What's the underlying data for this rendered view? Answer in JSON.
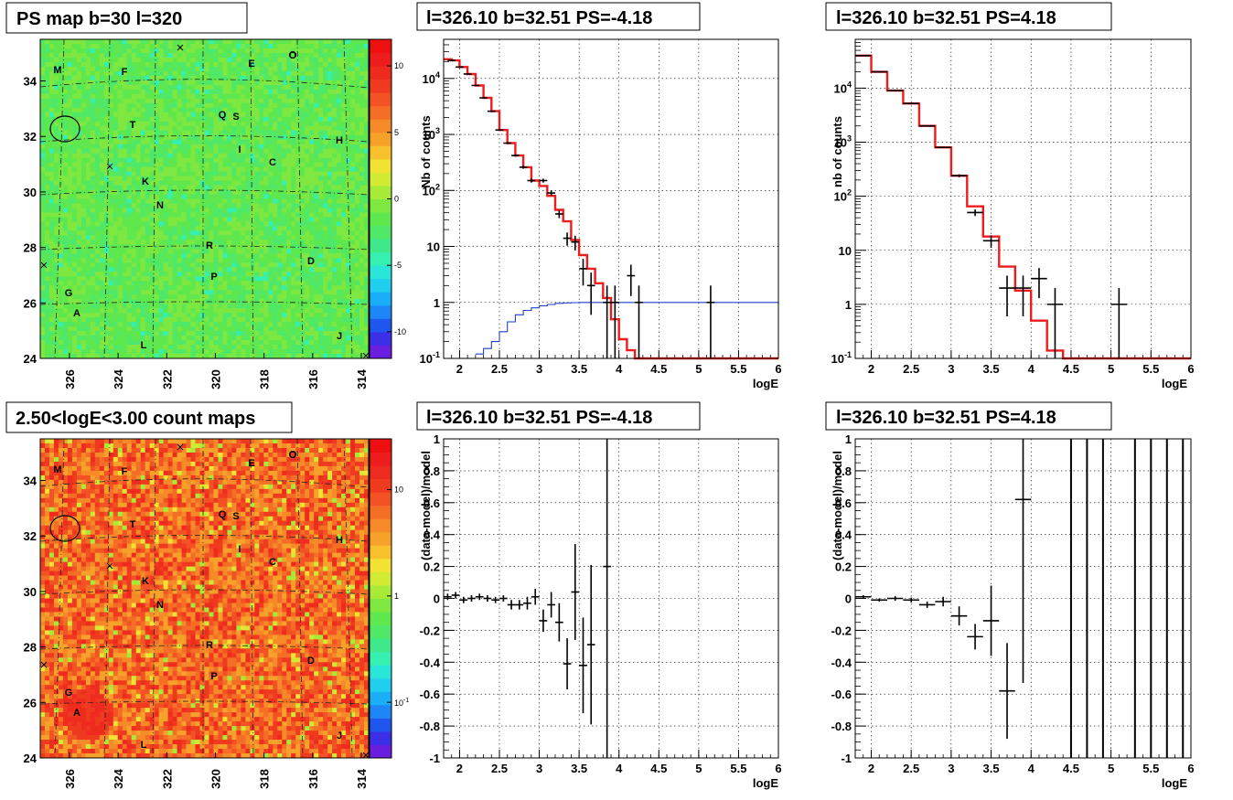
{
  "chart_data": [
    {
      "type": "heatmap",
      "title": "PS map b=30 l=320",
      "xlabel": "",
      "ylabel": "",
      "xticks": [
        "326",
        "324",
        "322",
        "320",
        "318",
        "316",
        "314"
      ],
      "yticks": [
        "24",
        "26",
        "28",
        "30",
        "32",
        "34"
      ],
      "xlim": [
        327.2,
        313.7
      ],
      "ylim": [
        24,
        35.5
      ],
      "colorbar": {
        "ticks": [
          "10",
          "5",
          "0",
          "-5",
          "-10"
        ],
        "tick_values": [
          10,
          5,
          0,
          -5,
          -10
        ],
        "range": [
          -12,
          12
        ],
        "colors": [
          "#6a1ee0",
          "#3b2fe8",
          "#1f56f0",
          "#1f86f7",
          "#19aef7",
          "#20cef0",
          "#2ae6d8",
          "#35f0b0",
          "#3fe88a",
          "#4fe868",
          "#5ee84e",
          "#7ee840",
          "#a8ea38",
          "#d2ea34",
          "#f2e234",
          "#f6c12d",
          "#f6a22a",
          "#f68a28",
          "#f46e26",
          "#f25224",
          "#f03a20",
          "#ef2a1e",
          "#ee1c1c",
          "#ee1010"
        ]
      },
      "background_color": "#3fe65a",
      "labels": [
        "M",
        "F",
        "E",
        "O",
        "T",
        "Q",
        "S",
        "H",
        "I",
        "C",
        "K",
        "N",
        "R",
        "D",
        "P",
        "G",
        "A",
        "L",
        "J"
      ]
    },
    {
      "type": "line",
      "title": "l=326.10 b=32.51 PS=-4.18",
      "xlabel": "logE",
      "ylabel": "Nb of counts",
      "log_y": true,
      "xlim": [
        1.8,
        6
      ],
      "ylim": [
        0.1,
        50000
      ],
      "xticks": [
        "2",
        "2.5",
        "3",
        "3.5",
        "4",
        "4.5",
        "5",
        "5.5",
        "6"
      ],
      "yticks": [
        "10^-1",
        "1",
        "10",
        "10^2",
        "10^3",
        "10^4"
      ],
      "series": [
        {
          "color": "#ee1c1c",
          "bin_edges": [
            1.8,
            1.9,
            2.0,
            2.1,
            2.2,
            2.3,
            2.4,
            2.5,
            2.6,
            2.7,
            2.8,
            2.9,
            3.0,
            3.1,
            3.2,
            3.3,
            3.4,
            3.5,
            3.6,
            3.7,
            3.8,
            3.9,
            4.0,
            4.1,
            4.2,
            4.3,
            6.0
          ],
          "values": [
            22000,
            21000,
            16000,
            12000,
            7500,
            4500,
            2600,
            1200,
            700,
            420,
            260,
            150,
            120,
            80,
            45,
            28,
            13,
            7,
            4,
            2.2,
            1.2,
            0.5,
            0.22,
            0.14,
            0.1,
            0.1
          ]
        },
        {
          "color": "#1f3fc8",
          "bin_edges": [
            2.2,
            2.3,
            2.4,
            2.5,
            2.6,
            2.7,
            2.8,
            2.9,
            3.0,
            3.1,
            3.2,
            3.3,
            3.4,
            3.5,
            6.0
          ],
          "values": [
            0.12,
            0.15,
            0.2,
            0.3,
            0.45,
            0.6,
            0.72,
            0.8,
            0.87,
            0.92,
            0.96,
            0.98,
            0.99,
            1.0
          ]
        }
      ],
      "points": [
        {
          "x": 1.9,
          "y": 21000,
          "err": 145,
          "xerr": 0.05
        },
        {
          "x": 2.0,
          "y": 16000,
          "err": 127,
          "xerr": 0.05
        },
        {
          "x": 2.1,
          "y": 12000,
          "err": 110,
          "xerr": 0.05
        },
        {
          "x": 2.2,
          "y": 7500,
          "err": 87,
          "xerr": 0.05
        },
        {
          "x": 2.3,
          "y": 4500,
          "err": 67,
          "xerr": 0.05
        },
        {
          "x": 2.4,
          "y": 2600,
          "err": 51,
          "xerr": 0.05
        },
        {
          "x": 2.5,
          "y": 1200,
          "err": 35,
          "xerr": 0.05
        },
        {
          "x": 2.6,
          "y": 700,
          "err": 26,
          "xerr": 0.05
        },
        {
          "x": 2.7,
          "y": 420,
          "err": 20,
          "xerr": 0.05
        },
        {
          "x": 2.8,
          "y": 260,
          "err": 16,
          "xerr": 0.05
        },
        {
          "x": 2.9,
          "y": 150,
          "err": 12,
          "xerr": 0.05
        },
        {
          "x": 3.05,
          "y": 150,
          "err": 12,
          "xerr": 0.05
        },
        {
          "x": 3.15,
          "y": 90,
          "err": 9,
          "xerr": 0.05
        },
        {
          "x": 3.25,
          "y": 38,
          "err": 6,
          "xerr": 0.05
        },
        {
          "x": 3.35,
          "y": 14,
          "err": 3.7,
          "xerr": 0.05
        },
        {
          "x": 3.45,
          "y": 12,
          "err": 3.5,
          "xerr": 0.05
        },
        {
          "x": 3.55,
          "y": 4,
          "err": 2,
          "xerr": 0.05
        },
        {
          "x": 3.65,
          "y": 2,
          "err": 1.4,
          "xerr": 0.05
        },
        {
          "x": 3.85,
          "y": 1,
          "err": 1,
          "xerr": 0.05
        },
        {
          "x": 3.95,
          "y": 1,
          "err": 1,
          "xerr": 0.05
        },
        {
          "x": 4.15,
          "y": 3,
          "err": 1.7,
          "xerr": 0.05
        },
        {
          "x": 4.25,
          "y": 1,
          "err": 1,
          "xerr": 0.05
        },
        {
          "x": 5.15,
          "y": 1,
          "err": 1,
          "xerr": 0.05
        }
      ]
    },
    {
      "type": "line",
      "title": "l=326.10 b=32.51 PS=4.18",
      "xlabel": "logE",
      "ylabel": "nb of counts",
      "log_y": true,
      "xlim": [
        1.8,
        6
      ],
      "ylim": [
        0.1,
        80000
      ],
      "xticks": [
        "2",
        "2.5",
        "3",
        "3.5",
        "4",
        "4.5",
        "5",
        "5.5",
        "6"
      ],
      "yticks": [
        "10^-1",
        "1",
        "10",
        "10^2",
        "10^3",
        "10^4"
      ],
      "series": [
        {
          "color": "#ee1c1c",
          "bin_edges": [
            1.8,
            2.0,
            2.2,
            2.4,
            2.6,
            2.8,
            3.0,
            3.2,
            3.4,
            3.6,
            3.8,
            4.0,
            4.2,
            4.4,
            6.0
          ],
          "values": [
            40000,
            20000,
            9000,
            5200,
            2000,
            800,
            240,
            65,
            18,
            5,
            1.8,
            0.5,
            0.14,
            0.1
          ]
        }
      ],
      "points": [
        {
          "x": 1.9,
          "y": 40000,
          "err": 200,
          "xerr": 0.1
        },
        {
          "x": 2.1,
          "y": 20000,
          "err": 141,
          "xerr": 0.1
        },
        {
          "x": 2.3,
          "y": 9000,
          "err": 95,
          "xerr": 0.1
        },
        {
          "x": 2.5,
          "y": 5200,
          "err": 72,
          "xerr": 0.1
        },
        {
          "x": 2.7,
          "y": 2000,
          "err": 45,
          "xerr": 0.1
        },
        {
          "x": 2.9,
          "y": 800,
          "err": 28,
          "xerr": 0.1
        },
        {
          "x": 3.1,
          "y": 240,
          "err": 15,
          "xerr": 0.1
        },
        {
          "x": 3.3,
          "y": 50,
          "err": 7,
          "xerr": 0.1
        },
        {
          "x": 3.5,
          "y": 15,
          "err": 3.9,
          "xerr": 0.1
        },
        {
          "x": 3.7,
          "y": 2,
          "err": 1.4,
          "xerr": 0.1
        },
        {
          "x": 3.9,
          "y": 2,
          "err": 1.4,
          "xerr": 0.1
        },
        {
          "x": 4.1,
          "y": 3,
          "err": 1.7,
          "xerr": 0.1
        },
        {
          "x": 4.3,
          "y": 1,
          "err": 1,
          "xerr": 0.1
        },
        {
          "x": 5.1,
          "y": 1,
          "err": 1,
          "xerr": 0.1
        }
      ]
    },
    {
      "type": "heatmap",
      "title": "2.50<logE<3.00 count maps",
      "xlabel": "",
      "ylabel": "",
      "xticks": [
        "326",
        "324",
        "322",
        "320",
        "318",
        "316",
        "314"
      ],
      "yticks": [
        "24",
        "26",
        "28",
        "30",
        "32",
        "34"
      ],
      "xlim": [
        327.2,
        313.7
      ],
      "ylim": [
        24,
        35.5
      ],
      "colorbar": {
        "ticks": [
          "10",
          "1",
          "10^-1"
        ],
        "tick_values": [
          10,
          1,
          0.1
        ],
        "log": true,
        "range": [
          0.03,
          30
        ],
        "colors": [
          "#6a1ee0",
          "#3b2fe8",
          "#1f56f0",
          "#1f86f7",
          "#19aef7",
          "#20cef0",
          "#2ae6d8",
          "#35f0b0",
          "#3fe88a",
          "#4fe868",
          "#5ee84e",
          "#7ee840",
          "#a8ea38",
          "#d2ea34",
          "#f2e234",
          "#f6c12d",
          "#f6a22a",
          "#f68a28",
          "#f46e26",
          "#f25224",
          "#f03a20",
          "#ef2a1e",
          "#ee1c1c",
          "#ee1010"
        ]
      },
      "background_color": "#f4a52c",
      "labels": [
        "M",
        "F",
        "E",
        "O",
        "T",
        "Q",
        "S",
        "H",
        "I",
        "C",
        "K",
        "N",
        "R",
        "D",
        "P",
        "G",
        "A",
        "L",
        "J"
      ]
    },
    {
      "type": "scatter",
      "title": "l=326.10 b=32.51 PS=-4.18",
      "xlabel": "logE",
      "ylabel": "(data-model)/model",
      "xlim": [
        1.8,
        6
      ],
      "ylim": [
        -1,
        1
      ],
      "xticks": [
        "2",
        "2.5",
        "3",
        "3.5",
        "4",
        "4.5",
        "5",
        "5.5",
        "6"
      ],
      "yticks": [
        "-1",
        "-0.8",
        "-0.6",
        "-0.4",
        "-0.2",
        "0",
        "0.2",
        "0.4",
        "0.6",
        "0.8",
        "1"
      ],
      "points": [
        {
          "x": 1.85,
          "y": 0.01,
          "err": 0.02,
          "xerr": 0.05
        },
        {
          "x": 1.95,
          "y": 0.02,
          "err": 0.02,
          "xerr": 0.05
        },
        {
          "x": 2.05,
          "y": -0.01,
          "err": 0.02,
          "xerr": 0.05
        },
        {
          "x": 2.15,
          "y": 0.0,
          "err": 0.02,
          "xerr": 0.05
        },
        {
          "x": 2.25,
          "y": 0.01,
          "err": 0.02,
          "xerr": 0.05
        },
        {
          "x": 2.35,
          "y": 0.0,
          "err": 0.02,
          "xerr": 0.05
        },
        {
          "x": 2.45,
          "y": -0.01,
          "err": 0.02,
          "xerr": 0.05
        },
        {
          "x": 2.55,
          "y": 0.0,
          "err": 0.02,
          "xerr": 0.05
        },
        {
          "x": 2.65,
          "y": -0.04,
          "err": 0.03,
          "xerr": 0.05
        },
        {
          "x": 2.75,
          "y": -0.04,
          "err": 0.03,
          "xerr": 0.05
        },
        {
          "x": 2.85,
          "y": -0.03,
          "err": 0.04,
          "xerr": 0.05
        },
        {
          "x": 2.95,
          "y": 0.01,
          "err": 0.05,
          "xerr": 0.05
        },
        {
          "x": 3.05,
          "y": -0.14,
          "err": 0.07,
          "xerr": 0.05
        },
        {
          "x": 3.15,
          "y": -0.04,
          "err": 0.08,
          "xerr": 0.05
        },
        {
          "x": 3.25,
          "y": -0.15,
          "err": 0.12,
          "xerr": 0.05
        },
        {
          "x": 3.35,
          "y": -0.41,
          "err": 0.16,
          "xerr": 0.05
        },
        {
          "x": 3.45,
          "y": 0.04,
          "err": 0.3,
          "xerr": 0.05
        },
        {
          "x": 3.55,
          "y": -0.42,
          "err": 0.3,
          "xerr": 0.05
        },
        {
          "x": 3.65,
          "y": -0.29,
          "err": 0.5,
          "xerr": 0.05
        },
        {
          "x": 3.85,
          "y": 0.2,
          "err": 1.6,
          "xerr": 0.05
        }
      ]
    },
    {
      "type": "scatter",
      "title": "l=326.10 b=32.51 PS=4.18",
      "xlabel": "logE",
      "ylabel": "(data-model)/model",
      "xlim": [
        1.8,
        6
      ],
      "ylim": [
        -1,
        1
      ],
      "xticks": [
        "2",
        "2.5",
        "3",
        "3.5",
        "4",
        "4.5",
        "5",
        "5.5",
        "6"
      ],
      "yticks": [
        "-1",
        "-0.8",
        "-0.6",
        "-0.4",
        "-0.2",
        "0",
        "0.2",
        "0.4",
        "0.6",
        "0.8",
        "1"
      ],
      "points": [
        {
          "x": 1.9,
          "y": 0.01,
          "err": 0.01,
          "xerr": 0.1
        },
        {
          "x": 2.1,
          "y": -0.01,
          "err": 0.01,
          "xerr": 0.1
        },
        {
          "x": 2.3,
          "y": 0.0,
          "err": 0.015,
          "xerr": 0.1
        },
        {
          "x": 2.5,
          "y": -0.01,
          "err": 0.015,
          "xerr": 0.1
        },
        {
          "x": 2.7,
          "y": -0.04,
          "err": 0.02,
          "xerr": 0.1
        },
        {
          "x": 2.9,
          "y": -0.02,
          "err": 0.03,
          "xerr": 0.1
        },
        {
          "x": 3.1,
          "y": -0.11,
          "err": 0.06,
          "xerr": 0.1
        },
        {
          "x": 3.3,
          "y": -0.24,
          "err": 0.08,
          "xerr": 0.1
        },
        {
          "x": 3.5,
          "y": -0.14,
          "err": 0.22,
          "xerr": 0.1
        },
        {
          "x": 3.7,
          "y": -0.58,
          "err": 0.3,
          "xerr": 0.1
        },
        {
          "x": 3.9,
          "y": 0.62,
          "err": 1.15,
          "xerr": 0.1
        }
      ],
      "vertical_lines_x": [
        4.5,
        4.7,
        4.9,
        5.3,
        5.5,
        5.7,
        5.9
      ]
    }
  ]
}
